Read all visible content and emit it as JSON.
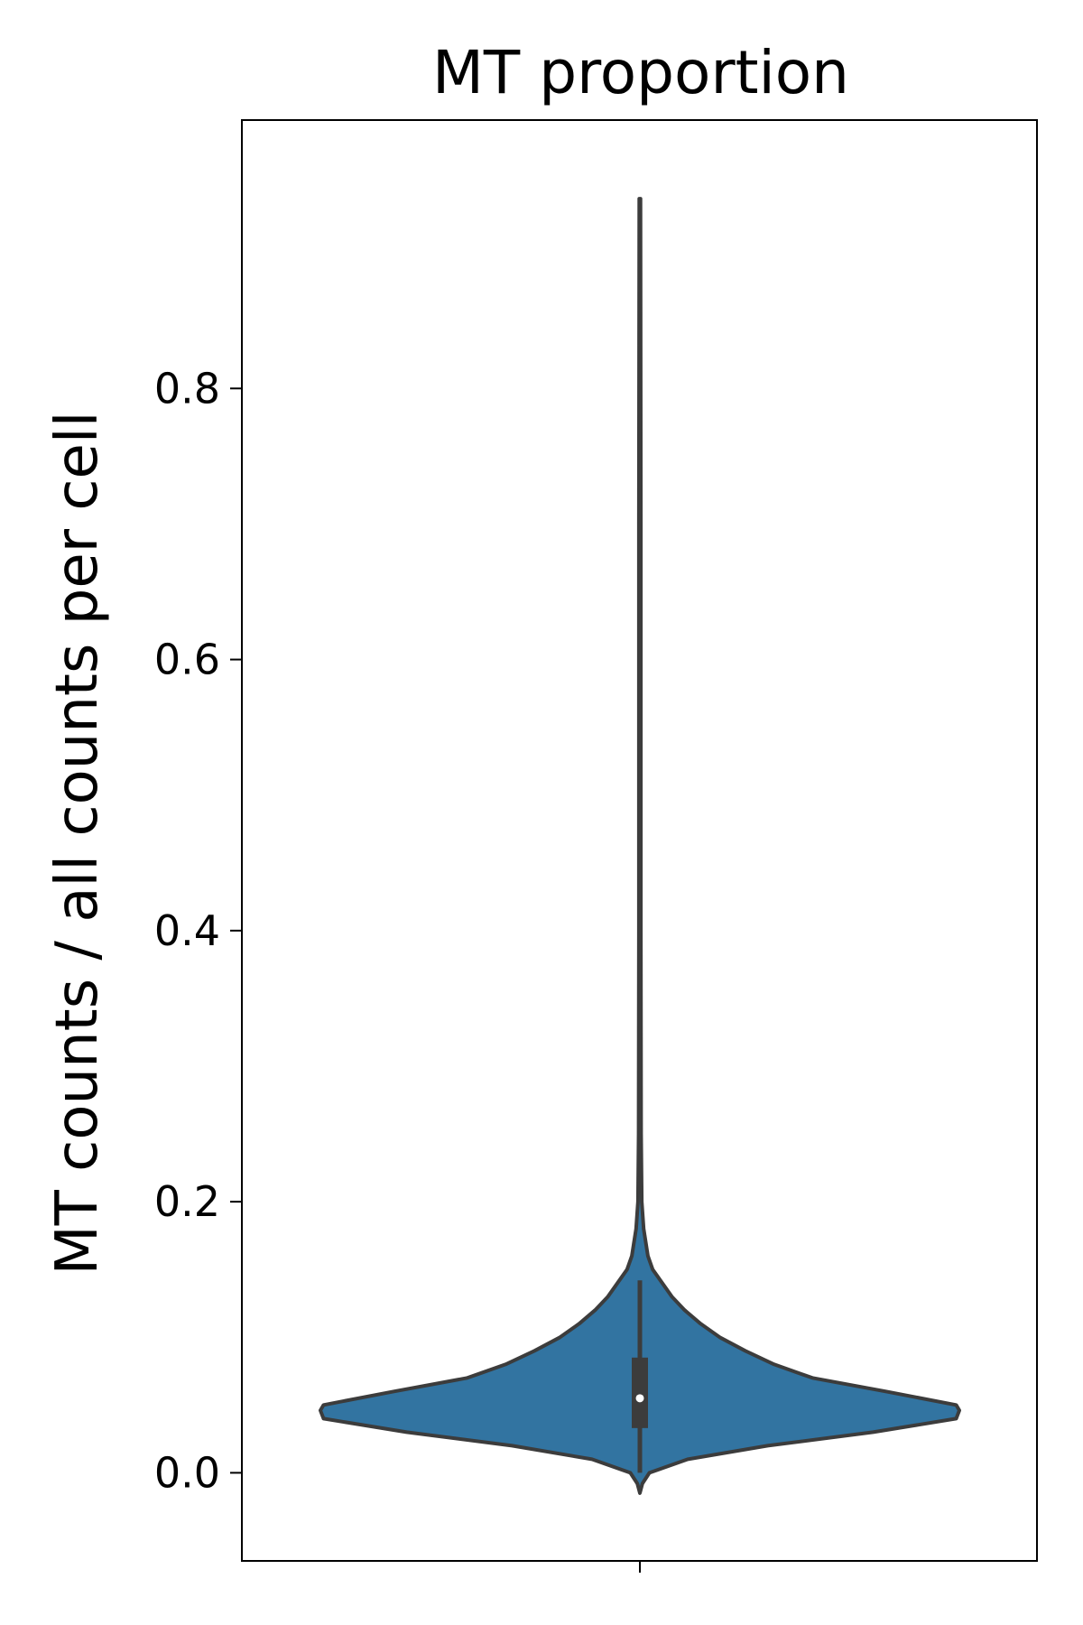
{
  "chart_data": {
    "type": "violin",
    "title": "MT proportion",
    "xlabel": "",
    "ylabel": "MT counts / all counts per cell",
    "ylim": [
      -0.065,
      0.998
    ],
    "yticks": [
      0.0,
      0.2,
      0.4,
      0.6,
      0.8
    ],
    "ytick_labels": [
      "0.0",
      "0.2",
      "0.4",
      "0.6",
      "0.8"
    ],
    "xticks": [
      ""
    ],
    "grid": false,
    "legend": "none",
    "series": [
      {
        "density_profile": [
          {
            "y": -0.015,
            "w": 0.0
          },
          {
            "y": -0.008,
            "w": 0.008
          },
          {
            "y": 0.0,
            "w": 0.03
          },
          {
            "y": 0.01,
            "w": 0.15
          },
          {
            "y": 0.02,
            "w": 0.4
          },
          {
            "y": 0.03,
            "w": 0.73
          },
          {
            "y": 0.04,
            "w": 0.99
          },
          {
            "y": 0.046,
            "w": 1.0
          },
          {
            "y": 0.05,
            "w": 0.99
          },
          {
            "y": 0.06,
            "w": 0.77
          },
          {
            "y": 0.07,
            "w": 0.54
          },
          {
            "y": 0.08,
            "w": 0.42
          },
          {
            "y": 0.09,
            "w": 0.33
          },
          {
            "y": 0.1,
            "w": 0.25
          },
          {
            "y": 0.11,
            "w": 0.19
          },
          {
            "y": 0.12,
            "w": 0.14
          },
          {
            "y": 0.13,
            "w": 0.1
          },
          {
            "y": 0.14,
            "w": 0.07
          },
          {
            "y": 0.15,
            "w": 0.04
          },
          {
            "y": 0.16,
            "w": 0.025
          },
          {
            "y": 0.18,
            "w": 0.012
          },
          {
            "y": 0.2,
            "w": 0.006
          },
          {
            "y": 0.25,
            "w": 0.004
          },
          {
            "y": 0.4,
            "w": 0.003
          },
          {
            "y": 0.7,
            "w": 0.003
          },
          {
            "y": 0.94,
            "w": 0.002
          }
        ],
        "box": {
          "q1": 0.033,
          "median": 0.055,
          "q3": 0.085,
          "whisker_low": 0.0,
          "whisker_high": 0.142
        }
      }
    ],
    "colors": {
      "violin_fill": "#3274a1",
      "violin_edge": "#3c3c3c",
      "box": "#3c3c3c",
      "median_marker": "#ffffff",
      "axes": "#000000"
    }
  }
}
